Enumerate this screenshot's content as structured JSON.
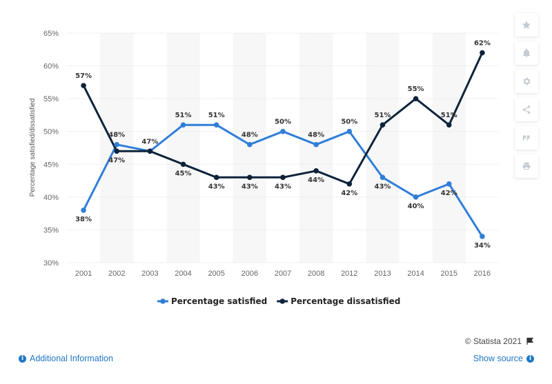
{
  "chart_data": {
    "type": "line",
    "categories": [
      "2001",
      "2002",
      "2003",
      "2004",
      "2005",
      "2006",
      "2007",
      "2008",
      "2012",
      "2013",
      "2014",
      "2015",
      "2016"
    ],
    "series": [
      {
        "name": "Percentage satisfied",
        "color": "#2f7ed8",
        "values": [
          38,
          48,
          47,
          51,
          51,
          48,
          50,
          48,
          50,
          43,
          40,
          42,
          34
        ]
      },
      {
        "name": "Percentage dissatisfied",
        "color": "#0d233a",
        "values": [
          57,
          47,
          47,
          45,
          43,
          43,
          43,
          44,
          42,
          51,
          55,
          51,
          62
        ]
      }
    ],
    "ylabel": "Percentage satisfied/dissatisfied",
    "ylim": [
      30,
      65
    ],
    "yticks": [
      30,
      35,
      40,
      45,
      50,
      55,
      60,
      65
    ],
    "ytick_suffix": "%",
    "data_label_suffix": "%",
    "grid": true,
    "legend_position": "bottom"
  },
  "toolbar": {
    "icons": [
      "star-icon",
      "bell-icon",
      "gear-icon",
      "share-icon",
      "quote-icon",
      "print-icon"
    ]
  },
  "footer": {
    "credit": "© Statista 2021",
    "additional_info": "Additional Information",
    "show_source": "Show source",
    "info_glyph": "i"
  }
}
